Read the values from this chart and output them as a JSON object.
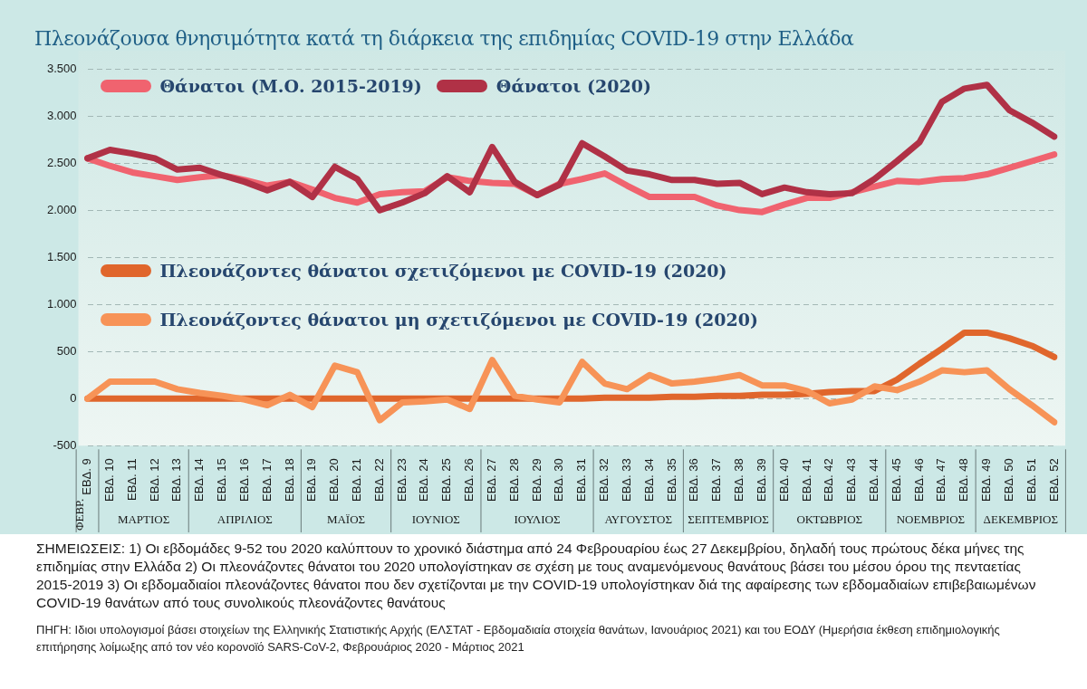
{
  "chart_data": {
    "type": "line",
    "title": "Πλεονάζουσα θνησιμότητα κατά τη διάρκεια της επιδημίας COVID-19 στην Ελλάδα",
    "categories": [
      "ΕΒΔ. 9",
      "ΕΒΔ. 10",
      "ΕΒΔ. 11",
      "ΕΒΔ. 12",
      "ΕΒΔ. 13",
      "ΕΒΔ. 14",
      "ΕΒΔ. 15",
      "ΕΒΔ. 16",
      "ΕΒΔ. 17",
      "ΕΒΔ. 18",
      "ΕΒΔ. 19",
      "ΕΒΔ. 20",
      "ΕΒΔ. 21",
      "ΕΒΔ. 22",
      "ΕΒΔ. 23",
      "ΕΒΔ. 24",
      "ΕΒΔ. 25",
      "ΕΒΔ. 26",
      "ΕΒΔ. 27",
      "ΕΒΔ. 28",
      "ΕΒΔ. 29",
      "ΕΒΔ. 30",
      "ΕΒΔ. 31",
      "ΕΒΔ. 32",
      "ΕΒΔ. 33",
      "ΕΒΔ. 34",
      "ΕΒΔ. 35",
      "ΕΒΔ. 36",
      "ΕΒΔ. 37",
      "ΕΒΔ. 38",
      "ΕΒΔ. 39",
      "ΕΒΔ. 40",
      "ΕΒΔ. 41",
      "ΕΒΔ. 42",
      "ΕΒΔ. 43",
      "ΕΒΔ. 44",
      "ΕΒΔ. 45",
      "ΕΒΔ. 46",
      "ΕΒΔ. 47",
      "ΕΒΔ. 48",
      "ΕΒΔ. 49",
      "ΕΒΔ. 50",
      "ΕΒΔ. 51",
      "ΕΒΔ. 52"
    ],
    "series": [
      {
        "name": "Θάνατοι (Μ.Ο. 2015-2019)",
        "color": "#f0636f",
        "values": [
          2550,
          2470,
          2400,
          2360,
          2320,
          2350,
          2370,
          2320,
          2260,
          2300,
          2220,
          2130,
          2080,
          2170,
          2190,
          2200,
          2350,
          2310,
          2290,
          2280,
          2160,
          2280,
          2330,
          2390,
          2260,
          2140,
          2140,
          2140,
          2050,
          2000,
          1980,
          2060,
          2130,
          2130,
          2190,
          2250,
          2310,
          2300,
          2330,
          2340,
          2380,
          2450,
          2520,
          2590
        ]
      },
      {
        "name": "Θάνατοι (2020)",
        "color": "#b03146",
        "values": [
          2550,
          2640,
          2600,
          2550,
          2430,
          2450,
          2370,
          2300,
          2210,
          2300,
          2140,
          2460,
          2330,
          2000,
          2080,
          2180,
          2360,
          2190,
          2670,
          2300,
          2160,
          2270,
          2710,
          2570,
          2420,
          2380,
          2320,
          2320,
          2280,
          2290,
          2170,
          2240,
          2190,
          2170,
          2180,
          2330,
          2520,
          2720,
          3150,
          3290,
          3330,
          3060,
          2930,
          2780
        ]
      },
      {
        "name": "Πλεονάζοντες θάνατοι σχετιζόμενοι με COVID-19 (2020)",
        "color": "#e0662c",
        "values": [
          0,
          0,
          0,
          0,
          0,
          0,
          0,
          0,
          0,
          0,
          0,
          0,
          0,
          0,
          0,
          0,
          0,
          0,
          0,
          0,
          0,
          0,
          0,
          10,
          10,
          10,
          20,
          20,
          30,
          30,
          40,
          40,
          50,
          70,
          80,
          80,
          200,
          370,
          530,
          700,
          700,
          640,
          560,
          440
        ]
      },
      {
        "name": "Πλεονάζοντες θάνατοι μη σχετιζόμενοι με COVID-19 (2020)",
        "color": "#f79357",
        "values": [
          0,
          180,
          180,
          180,
          100,
          60,
          30,
          -10,
          -70,
          40,
          -90,
          350,
          280,
          -230,
          -40,
          -30,
          -10,
          -110,
          410,
          30,
          -10,
          -40,
          390,
          160,
          100,
          250,
          160,
          180,
          210,
          250,
          140,
          140,
          80,
          -50,
          -10,
          130,
          90,
          180,
          300,
          280,
          300,
          100,
          -70,
          -250
        ]
      }
    ],
    "ylim": [
      -500,
      3500
    ],
    "yticks": [
      -500,
      0,
      500,
      {
        "value": 1000,
        "label": "1.000"
      },
      {
        "value": 1500,
        "label": "1.500"
      },
      {
        "value": 2000,
        "label": "2.000"
      },
      {
        "value": 2500,
        "label": "2.500"
      },
      {
        "value": 3000,
        "label": "3.000"
      },
      {
        "value": 3500,
        "label": "3.500"
      }
    ],
    "grid": "y",
    "legend": "top left",
    "annotations": [
      "ΦΕΒΡ.",
      "ΜΑΡΤΙΟΣ",
      "ΑΠΡΙΛΙΟΣ",
      "ΜΑΪΟΣ",
      "ΙΟΥΝΙΟΣ",
      "ΙΟΥΛΙΟΣ",
      "ΑΥΓΟΥΣΤΟΣ",
      "ΣΕΠΤΕΜΒΡΙΟΣ",
      "ΟΚΤΩΒΡΙΟΣ",
      "ΝΟΕΜΒΡΙΟΣ",
      "ΔΕΚΕΜΒΡΙΟΣ",
      "ΣΗΜΕΙΩΣΕΙΣ: 1) Οι εβδομάδες 9-52 του 2020 καλύπτουν το χρονικό διάστημα από 24 Φεβρουαρίου έως 27 Δεκεμβρίου, δηλαδή τους πρώτους δέκα μήνες της επιδημίας στην Ελλάδα 2) Οι πλεονάζοντες θάνατοι του 2020 υπολογίστηκαν σε σχέση με τους αναμενόμενους θανάτους βάσει του μέσου όρου της πενταετίας 2015-2019 3) Οι εβδομαδιαίοι πλεονάζοντες θάνατοι που δεν σχετίζονται με την COVID-19 υπολογίστηκαν διά της αφαίρεσης των εβδομαδιαίων επιβεβαιωμένων COVID-19 θανάτων από τους συνολικούς πλεονάζοντες θανάτους",
      "ΠΗΓΗ: Ιδιοι υπολογισμοί βάσει στοιχείων της Ελληνικής Στατιστικής Αρχής (ΕΛΣΤΑΤ - Εβδομαδιαία στοιχεία θανάτων, Ιανουάριος 2021) και του ΕΟΔΥ (Ημερήσια έκθεση επιδημιολογικής επιτήρησης λοίμωξης από τον νέο κορονοϊό SARS-CoV-2, Φεβρουάριος 2020 - Μάρτιος 2021"
    ]
  }
}
